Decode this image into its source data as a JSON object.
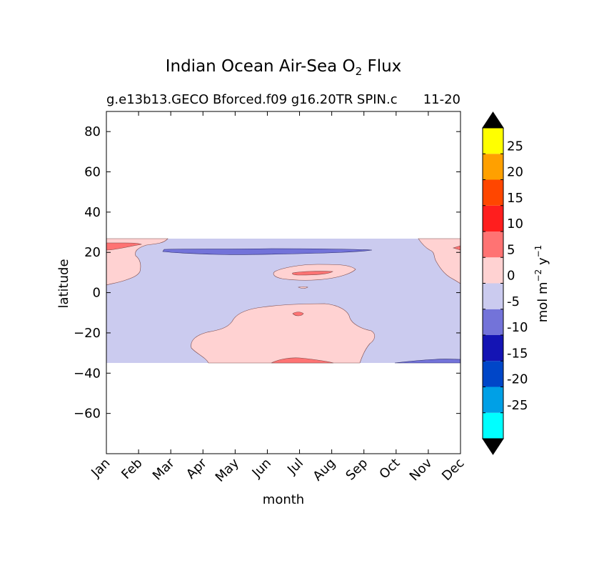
{
  "chart_data": {
    "type": "heatmap",
    "title": "Indian Ocean Air-Sea O",
    "title_sub": "2",
    "title_suffix": " Flux",
    "subtitle_left": "g.e13b13.GECO Bforced.f09 g16.20TR SPIN.c",
    "subtitle_right": "11-20",
    "xlabel": "month",
    "ylabel": "latitude",
    "x_categories": [
      "Jan",
      "Feb",
      "Mar",
      "Apr",
      "May",
      "Jun",
      "Jul",
      "Aug",
      "Sep",
      "Oct",
      "Nov",
      "Dec"
    ],
    "y_ticks": [
      "80",
      "60",
      "40",
      "20",
      "0",
      "−20",
      "−40",
      "−60"
    ],
    "ylim": [
      -80,
      90
    ],
    "data_lat_range": [
      -34,
      27
    ],
    "colorbar": {
      "label_main": "mol m",
      "label_exp1": "−2",
      "label_mid": " y",
      "label_exp2": "−1",
      "levels": [
        -30,
        -25,
        -20,
        -15,
        -10,
        -5,
        0,
        5,
        10,
        15,
        20,
        25,
        30
      ],
      "tick_labels": [
        "-25",
        "-20",
        "-15",
        "-10",
        "-5",
        "0",
        "5",
        "10",
        "15",
        "20",
        "25"
      ],
      "colors": [
        "#00ffff",
        "#00a0e6",
        "#0046c8",
        "#1414b4",
        "#7373d9",
        "#cbcbef",
        "#ffd2d2",
        "#ff7373",
        "#ff1e1e",
        "#ff4600",
        "#ffa000",
        "#ffff00"
      ],
      "extend": "both",
      "extend_color": "#000000"
    },
    "regions": [
      {
        "name": "background",
        "value_range": [
          -5,
          0
        ],
        "color": "#cbcbef"
      },
      {
        "name": "positive",
        "value_range": [
          0,
          5
        ],
        "color": "#ffd2d2"
      },
      {
        "name": "strong-positive",
        "value_range": [
          5,
          10
        ],
        "color": "#ff7373"
      },
      {
        "name": "negative",
        "value_range": [
          -10,
          -5
        ],
        "color": "#7373d9"
      }
    ]
  }
}
